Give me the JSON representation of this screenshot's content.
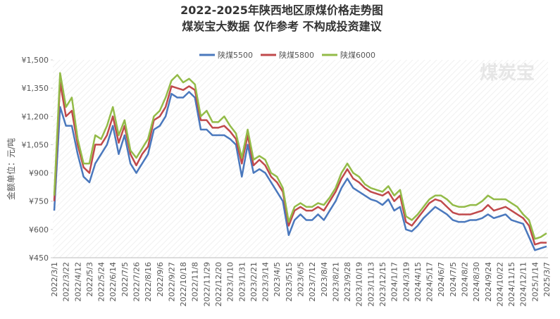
{
  "chart_data": {
    "type": "line",
    "title": "2022-2025年陕西地区原煤价格走势图",
    "subtitle": "煤炭宝大数据 仅作参考 不构成投资建议",
    "y_label": "金额单位：元/吨",
    "watermark": "煤炭宝",
    "legend_position": "top",
    "categories": [
      "2022/3/1",
      null,
      "2022/3/22",
      null,
      "2022/4/12",
      null,
      "2022/5/3",
      null,
      "2022/5/24",
      null,
      "2022/6/14",
      null,
      "2022/7/5",
      null,
      "2022/7/26",
      null,
      "2022/8/16",
      null,
      "2022/9/6",
      null,
      "2022/9/27",
      null,
      "2022/10/18",
      null,
      "2022/11/8",
      null,
      "2022/11/29",
      null,
      "2022/12/20",
      null,
      "2023/1/10",
      null,
      "2023/1/31",
      null,
      "2023/2/21",
      null,
      "2023/3/14",
      null,
      "2023/4/5",
      null,
      "2023/5/15",
      null,
      "2023/6/5",
      null,
      "2023/7/12",
      null,
      "2023/8/4",
      null,
      "2023/8/21",
      null,
      "2023/9/28",
      null,
      "2023/10/19",
      null,
      "2023/11/13",
      null,
      "2023/12/15",
      null,
      "2024/1/17",
      null,
      "2024/3/19",
      null,
      "2024/4/15",
      null,
      "2024/5/17",
      null,
      "2024/6/7",
      null,
      "2024/7/5",
      null,
      "2024/8/2",
      null,
      "2024/8/30",
      null,
      "2024/9/24",
      null,
      "2024/10/22",
      null,
      "2024/11/15",
      null,
      "2024/12/11",
      null,
      "2025/1/14",
      null,
      "2025/3/7"
    ],
    "series": [
      {
        "name": "陕煤5500",
        "color": "#4a78bd",
        "values": [
          700,
          1250,
          1150,
          1150,
          1000,
          880,
          850,
          950,
          1000,
          1050,
          1150,
          1000,
          1100,
          950,
          900,
          950,
          1000,
          1130,
          1150,
          1200,
          1320,
          1300,
          1300,
          1330,
          1300,
          1130,
          1130,
          1100,
          1100,
          1100,
          1080,
          1050,
          880,
          1050,
          900,
          920,
          900,
          850,
          800,
          750,
          570,
          650,
          680,
          650,
          650,
          680,
          650,
          700,
          750,
          820,
          870,
          820,
          800,
          780,
          760,
          750,
          730,
          760,
          700,
          720,
          600,
          590,
          620,
          660,
          690,
          720,
          700,
          680,
          650,
          640,
          640,
          650,
          650,
          660,
          680,
          660,
          670,
          680,
          650,
          640,
          630,
          560,
          490,
          500,
          510
        ]
      },
      {
        "name": "陕煤5800",
        "color": "#c0494b",
        "values": [
          750,
          1380,
          1200,
          1230,
          1050,
          930,
          900,
          1050,
          1050,
          1100,
          1200,
          1060,
          1150,
          1000,
          940,
          1000,
          1040,
          1180,
          1200,
          1250,
          1360,
          1350,
          1340,
          1360,
          1340,
          1180,
          1180,
          1140,
          1140,
          1150,
          1120,
          1080,
          950,
          1100,
          940,
          970,
          940,
          880,
          850,
          800,
          620,
          700,
          720,
          700,
          700,
          720,
          700,
          750,
          800,
          870,
          920,
          870,
          850,
          820,
          800,
          790,
          780,
          800,
          750,
          780,
          640,
          620,
          660,
          700,
          740,
          760,
          750,
          720,
          690,
          680,
          680,
          680,
          690,
          700,
          730,
          700,
          710,
          720,
          700,
          680,
          660,
          620,
          520,
          530,
          530
        ]
      },
      {
        "name": "陕煤6000",
        "color": "#93bb48",
        "values": [
          780,
          1430,
          1250,
          1300,
          1080,
          950,
          950,
          1100,
          1080,
          1150,
          1250,
          1100,
          1180,
          1020,
          980,
          1030,
          1080,
          1200,
          1230,
          1300,
          1390,
          1420,
          1380,
          1400,
          1370,
          1200,
          1230,
          1170,
          1170,
          1200,
          1150,
          1110,
          980,
          1130,
          970,
          990,
          970,
          900,
          880,
          820,
          640,
          720,
          740,
          720,
          720,
          740,
          730,
          770,
          820,
          900,
          950,
          900,
          880,
          840,
          820,
          810,
          800,
          830,
          780,
          810,
          670,
          650,
          680,
          720,
          760,
          780,
          780,
          760,
          730,
          720,
          720,
          730,
          730,
          750,
          780,
          760,
          760,
          760,
          740,
          720,
          680,
          650,
          550,
          560,
          580
        ]
      }
    ],
    "ylim": [
      450,
      1500
    ],
    "yticks": [
      {
        "value": 450,
        "label": "¥450"
      },
      {
        "value": 600,
        "label": "¥600"
      },
      {
        "value": 750,
        "label": "¥750"
      },
      {
        "value": 900,
        "label": "¥900"
      },
      {
        "value": 1050,
        "label": "¥1,050"
      },
      {
        "value": 1200,
        "label": "¥1,200"
      },
      {
        "value": 1350,
        "label": "¥1,350"
      },
      {
        "value": 1500,
        "label": "¥1,500"
      }
    ]
  }
}
